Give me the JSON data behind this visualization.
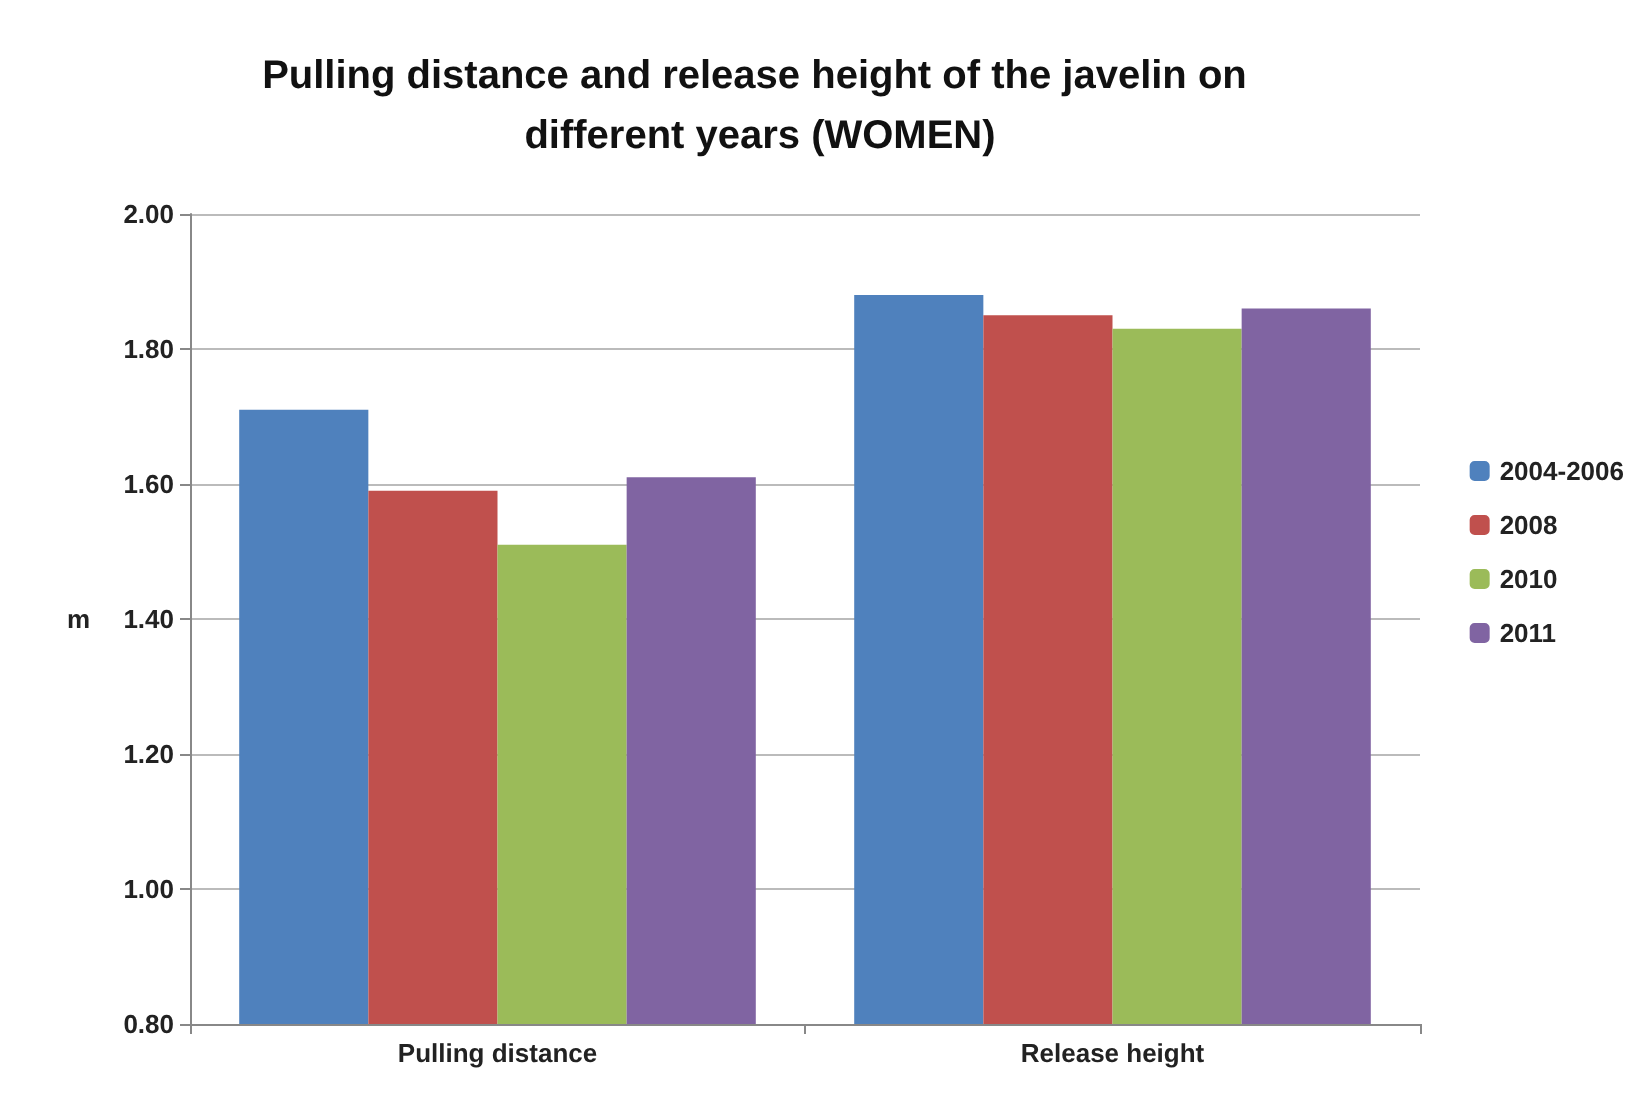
{
  "chart_data": {
    "type": "bar",
    "title": "Pulling distance and release height of the javelin on different years (WOMEN)",
    "ylabel": "m",
    "categories": [
      "Pulling distance",
      "Release height"
    ],
    "series": [
      {
        "name": "2004-2006",
        "color": "#4f81bd",
        "values": [
          1.71,
          1.88
        ]
      },
      {
        "name": "2008",
        "color": "#c0504d",
        "values": [
          1.59,
          1.85
        ]
      },
      {
        "name": "2010",
        "color": "#9bbb59",
        "values": [
          1.51,
          1.83
        ]
      },
      {
        "name": "2011",
        "color": "#8064a2",
        "values": [
          1.61,
          1.86
        ]
      }
    ],
    "ylim": [
      0.8,
      2.0
    ],
    "yticks": [
      {
        "value": 0.8,
        "label": "0.80"
      },
      {
        "value": 1.0,
        "label": "1.00"
      },
      {
        "value": 1.2,
        "label": "1.20"
      },
      {
        "value": 1.4,
        "label": "1.40"
      },
      {
        "value": 1.6,
        "label": "1.60"
      },
      {
        "value": 1.8,
        "label": "1.80"
      },
      {
        "value": 2.0,
        "label": "2.00"
      }
    ],
    "grid": "y",
    "legend": "right"
  }
}
